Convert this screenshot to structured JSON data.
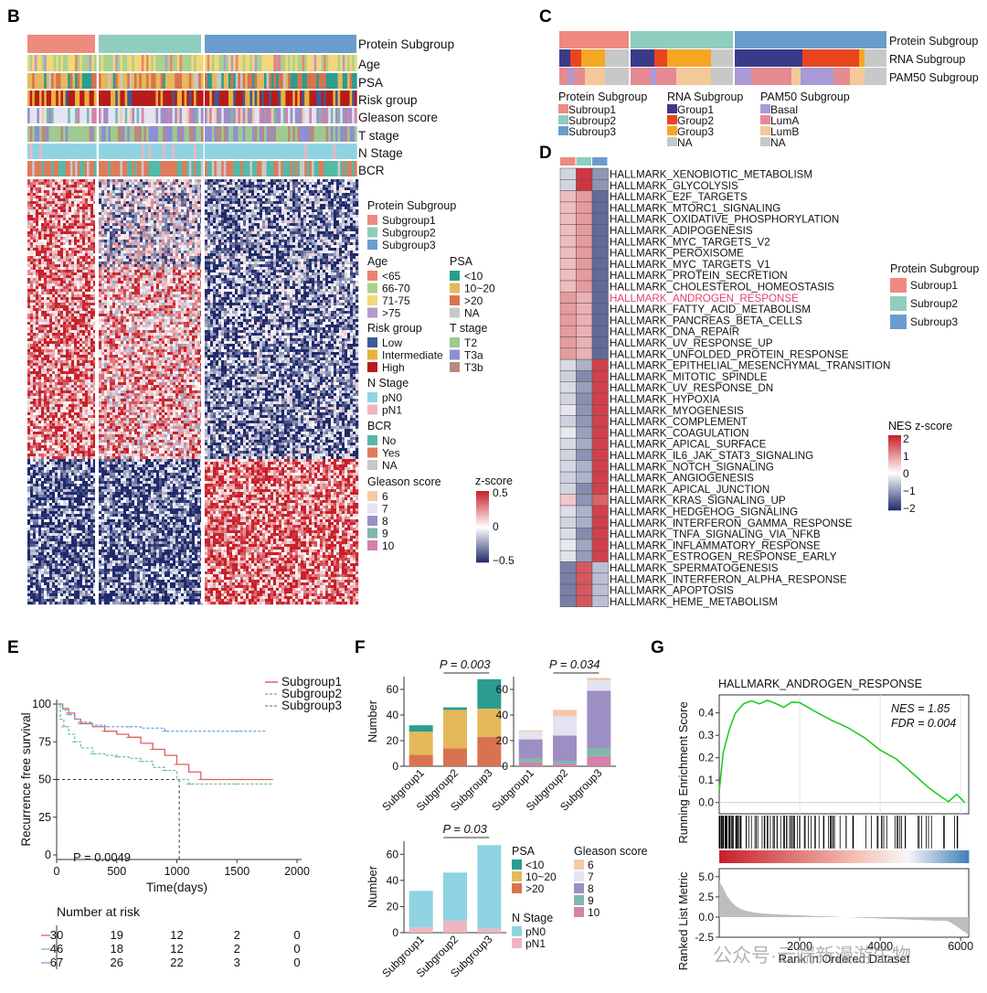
{
  "panels": {
    "B": {
      "letter": "B",
      "annotation_tracks": [
        "Protein Subgroup",
        "Age",
        "PSA",
        "Risk group",
        "Gleason score",
        "T stage",
        "N Stage",
        "BCR"
      ],
      "legend": {
        "protein": {
          "title": "Protein Subgroup",
          "items": [
            "Subgroup1",
            "Subgroup2",
            "Subgroup3"
          ],
          "colors": [
            "#ee8a7e",
            "#8fcdbe",
            "#6b9dcc"
          ]
        },
        "age": {
          "title": "Age",
          "items": [
            "<65",
            "66-70",
            "71-75",
            ">75"
          ],
          "colors": [
            "#e9836f",
            "#a9d18e",
            "#f2d77b",
            "#b59acb"
          ]
        },
        "psa": {
          "title": "PSA",
          "items": [
            "<10",
            "10~20",
            ">20",
            "NA"
          ],
          "colors": [
            "#2a9d8f",
            "#e5b85c",
            "#d9734f",
            "#c8c8c8"
          ]
        },
        "risk": {
          "title": "Risk group",
          "items": [
            "Low",
            "Intermediate",
            "High"
          ],
          "colors": [
            "#3b5b99",
            "#e8b23a",
            "#b71c1c"
          ]
        },
        "tstage": {
          "title": "T stage",
          "items": [
            "T2",
            "T3a",
            "T3b"
          ],
          "colors": [
            "#9fc98e",
            "#8c8fd6",
            "#b88a80"
          ]
        },
        "nstage": {
          "title": "N Stage",
          "items": [
            "pN0",
            "pN1"
          ],
          "colors": [
            "#8fd3e3",
            "#f0b5c0"
          ]
        },
        "bcr": {
          "title": "BCR",
          "items": [
            "No",
            "Yes",
            "NA"
          ],
          "colors": [
            "#54b9a6",
            "#e07b5a",
            "#c8c8c8"
          ]
        },
        "gleason": {
          "title": "Gleason score",
          "items": [
            "6",
            "7",
            "8",
            "9",
            "10"
          ],
          "colors": [
            "#f4c9a6",
            "#e3e3f2",
            "#9d8fc4",
            "#7fb8a8",
            "#d282ab"
          ]
        },
        "zscore": {
          "title": "z-score",
          "ticks": [
            "0.5",
            "0",
            "−0.5"
          ]
        }
      }
    },
    "C": {
      "letter": "C",
      "tracks": [
        "Protein Subgroup",
        "RNA Subgroup",
        "PAM50 Subgroup"
      ],
      "legend": {
        "protein": {
          "title": "Protein Subgroup",
          "items": [
            "Subroup1",
            "Subroup2",
            "Subroup3"
          ],
          "colors": [
            "#ee8a7e",
            "#8fcdbe",
            "#6b9dcc"
          ]
        },
        "rna": {
          "title": "RNA Subgroup",
          "items": [
            "Group1",
            "Group2",
            "Group3",
            "NA"
          ],
          "colors": [
            "#3a3a8a",
            "#e8451f",
            "#f5a623",
            "#c8c8c8"
          ]
        },
        "pam50": {
          "title": "PAM50 Subgroup",
          "items": [
            "Basal",
            "LumA",
            "LumB",
            "NA"
          ],
          "colors": [
            "#a89ad6",
            "#e58a93",
            "#f3c99a",
            "#c8c8c8"
          ]
        }
      }
    },
    "D": {
      "letter": "D",
      "pathways": [
        "HALLMARK_XENOBIOTIC_METABOLISM",
        "HALLMARK_GLYCOLYSIS",
        "HALLMARK_E2F_TARGETS",
        "HALLMARK_MTORC1_SIGNALING",
        "HALLMARK_OXIDATIVE_PHOSPHORYLATION",
        "HALLMARK_ADIPOGENESIS",
        "HALLMARK_MYC_TARGETS_V2",
        "HALLMARK_PEROXISOME",
        "HALLMARK_MYC_TARGETS_V1",
        "HALLMARK_PROTEIN_SECRETION",
        "HALLMARK_CHOLESTEROL_HOMEOSTASIS",
        "HALLMARK_ANDROGEN_RESPONSE",
        "HALLMARK_FATTY_ACID_METABOLISM",
        "HALLMARK_PANCREAS_BETA_CELLS",
        "HALLMARK_DNA_REPAIR",
        "HALLMARK_UV_RESPONSE_UP",
        "HALLMARK_UNFOLDED_PROTEIN_RESPONSE",
        "HALLMARK_EPITHELIAL_MESENCHYMAL_TRANSITION",
        "HALLMARK_MITOTIC_SPINDLE",
        "HALLMARK_UV_RESPONSE_DN",
        "HALLMARK_HYPOXIA",
        "HALLMARK_MYOGENESIS",
        "HALLMARK_COMPLEMENT",
        "HALLMARK_COAGULATION",
        "HALLMARK_APICAL_SURFACE",
        "HALLMARK_IL6_JAK_STAT3_SIGNALING",
        "HALLMARK_NOTCH_SIGNALING",
        "HALLMARK_ANGIOGENESIS",
        "HALLMARK_APICAL_JUNCTION",
        "HALLMARK_KRAS_SIGNALING_UP",
        "HALLMARK_HEDGEHOG_SIGNALING",
        "HALLMARK_INTERFERON_GAMMA_RESPONSE",
        "HALLMARK_TNFA_SIGNALING_VIA_NFKB",
        "HALLMARK_INFLAMMATORY_RESPONSE",
        "HALLMARK_ESTROGEN_RESPONSE_EARLY",
        "HALLMARK_SPERMATOGENESIS",
        "HALLMARK_INTERFERON_ALPHA_RESPONSE",
        "HALLMARK_APOPTOSIS",
        "HALLMARK_HEME_METABOLISM"
      ],
      "highlight_index": 11,
      "highlight_color": "#e0436b",
      "legend": {
        "title": "Protein Subgroup",
        "items": [
          "Subroup1",
          "Subroup2",
          "Subroup3"
        ],
        "colors": [
          "#ee8a7e",
          "#8fcdbe",
          "#6b9dcc"
        ]
      },
      "nes": {
        "title": "NES z-score",
        "ticks": [
          "2",
          "1",
          "0",
          "−1",
          "−2"
        ]
      }
    },
    "E": {
      "letter": "E",
      "ylabel": "Recurrence free survival",
      "xlabel": "Time(days)",
      "pvalue_label": "P = 0.0049",
      "legend": [
        "Subgroup1",
        "Subgroup2",
        "Subgroup3"
      ],
      "risk_title": "Number at risk",
      "risk_table": [
        [
          "30",
          "19",
          "12",
          "2",
          "0"
        ],
        [
          "46",
          "18",
          "12",
          "2",
          "0"
        ],
        [
          "67",
          "26",
          "22",
          "3",
          "0"
        ]
      ]
    },
    "F": {
      "letter": "F",
      "p_psa": "P = 0.003",
      "p_gleason": "P = 0.034",
      "p_nstage": "P = 0.03",
      "ylabel": "Number",
      "psa_legend_title": "PSA",
      "psa_legend": [
        "<10",
        "10~20",
        ">20"
      ],
      "gleason_legend_title": "Gleason score",
      "gleason_legend": [
        "6",
        "7",
        "8",
        "9",
        "10"
      ],
      "nstage_legend_title": "N Stage",
      "nstage_legend": [
        "pN0",
        "pN1"
      ]
    },
    "G": {
      "letter": "G",
      "title": "HALLMARK_ANDROGEN_RESPONSE",
      "nes": "NES = 1.85",
      "fdr": "FDR = 0.004",
      "ylabel_top": "Running Enrichment Score",
      "ylabel_bottom": "Ranked List Metric",
      "xlabel": "Rank in Ordered Dataset",
      "watermark": "公众号·云端新漫游生物"
    }
  },
  "chart_data": [
    {
      "type": "line",
      "panel": "E",
      "xlabel": "Time(days)",
      "ylabel": "Recurrence free survival",
      "xlim": [
        0,
        2000
      ],
      "ylim": [
        0,
        100
      ],
      "xticks": [
        0,
        500,
        1000,
        1500,
        2000
      ],
      "yticks": [
        0,
        25,
        50,
        75,
        100
      ],
      "median_line": {
        "y": 50,
        "x": 1020
      },
      "series": [
        {
          "name": "Subgroup1",
          "color": "#e06055",
          "x": [
            0,
            50,
            100,
            150,
            200,
            300,
            400,
            500,
            600,
            700,
            800,
            900,
            1000,
            1100,
            1200,
            1300,
            1500,
            1800
          ],
          "y": [
            100,
            97,
            94,
            90,
            87,
            85,
            82,
            80,
            78,
            74,
            70,
            66,
            60,
            55,
            50,
            50,
            50,
            50
          ]
        },
        {
          "name": "Subgroup2",
          "color": "#72c1a8",
          "x": [
            0,
            30,
            60,
            100,
            150,
            200,
            300,
            400,
            500,
            600,
            700,
            800,
            900,
            1000,
            1100,
            1300,
            1500,
            1800
          ],
          "y": [
            100,
            90,
            85,
            80,
            75,
            71,
            67,
            66,
            65,
            64,
            62,
            58,
            56,
            50,
            47,
            47,
            47,
            47
          ]
        },
        {
          "name": "Subgroup3",
          "color": "#6ea6d6",
          "x": [
            0,
            50,
            100,
            150,
            200,
            300,
            400,
            500,
            600,
            700,
            900,
            1200,
            1500,
            1750
          ],
          "y": [
            100,
            96,
            93,
            90,
            88,
            86,
            85,
            85,
            85,
            84,
            82,
            82,
            82,
            82
          ]
        }
      ],
      "pvalue": "P = 0.0049"
    },
    {
      "type": "bar",
      "panel": "F-PSA",
      "categories": [
        "Subgroup1",
        "Subgroup2",
        "Subgroup3"
      ],
      "ylabel": "Number",
      "ylim": [
        0,
        70
      ],
      "yticks": [
        0,
        20,
        40,
        60
      ],
      "series": [
        {
          "name": ">20",
          "color": "#d9734f",
          "values": [
            9,
            14,
            23
          ]
        },
        {
          "name": "10~20",
          "color": "#e5b85c",
          "values": [
            18,
            30,
            22
          ]
        },
        {
          "name": "<10",
          "color": "#2a9d8f",
          "values": [
            5,
            2,
            23
          ]
        }
      ],
      "pvalue": "P = 0.003"
    },
    {
      "type": "bar",
      "panel": "F-Gleason",
      "categories": [
        "Subgroup1",
        "Subgroup2",
        "Subgroup3"
      ],
      "ylim": [
        0,
        70
      ],
      "yticks": [
        0,
        20,
        40,
        60
      ],
      "series": [
        {
          "name": "10",
          "color": "#d282ab",
          "values": [
            3,
            2,
            8
          ]
        },
        {
          "name": "9",
          "color": "#7fb8a8",
          "values": [
            3,
            2,
            6
          ]
        },
        {
          "name": "8",
          "color": "#9d8fc4",
          "values": [
            15,
            20,
            45
          ]
        },
        {
          "name": "7",
          "color": "#e3e3f2",
          "values": [
            6,
            15,
            8
          ]
        },
        {
          "name": "6",
          "color": "#f4c9a6",
          "values": [
            1,
            5,
            2
          ]
        }
      ],
      "pvalue": "P = 0.034"
    },
    {
      "type": "bar",
      "panel": "F-NStage",
      "categories": [
        "Subgroup1",
        "Subgroup2",
        "Subgroup3"
      ],
      "ylabel": "Number",
      "ylim": [
        0,
        70
      ],
      "yticks": [
        0,
        20,
        40,
        60
      ],
      "series": [
        {
          "name": "pN1",
          "color": "#f0b5c0",
          "values": [
            4,
            9,
            3
          ]
        },
        {
          "name": "pN0",
          "color": "#8fd3e3",
          "values": [
            28,
            37,
            64
          ]
        }
      ],
      "pvalue": "P = 0.03"
    },
    {
      "type": "line",
      "panel": "G",
      "title": "HALLMARK_ANDROGEN_RESPONSE",
      "xlim": [
        0,
        6200
      ],
      "ylim_top": [
        -0.05,
        0.48
      ],
      "yticks_top": [
        0.0,
        0.1,
        0.2,
        0.3,
        0.4
      ],
      "ylim_bottom": [
        -2.5,
        6
      ],
      "yticks_bottom": [
        5.0,
        2.5,
        0.0,
        -2.5
      ],
      "xticks": [
        2000,
        4000,
        6000
      ],
      "x": [
        0,
        100,
        250,
        400,
        600,
        800,
        1000,
        1200,
        1400,
        1600,
        1800,
        2000,
        2200,
        2500,
        2800,
        3200,
        3600,
        4000,
        4400,
        4800,
        5200,
        5500,
        5700,
        5900,
        6100
      ],
      "y": [
        0.05,
        0.22,
        0.32,
        0.4,
        0.44,
        0.45,
        0.44,
        0.45,
        0.44,
        0.43,
        0.45,
        0.44,
        0.42,
        0.4,
        0.37,
        0.33,
        0.29,
        0.24,
        0.19,
        0.13,
        0.07,
        0.03,
        0.0,
        0.04,
        0.0
      ],
      "nes": "NES = 1.85",
      "fdr": "FDR = 0.004"
    }
  ]
}
